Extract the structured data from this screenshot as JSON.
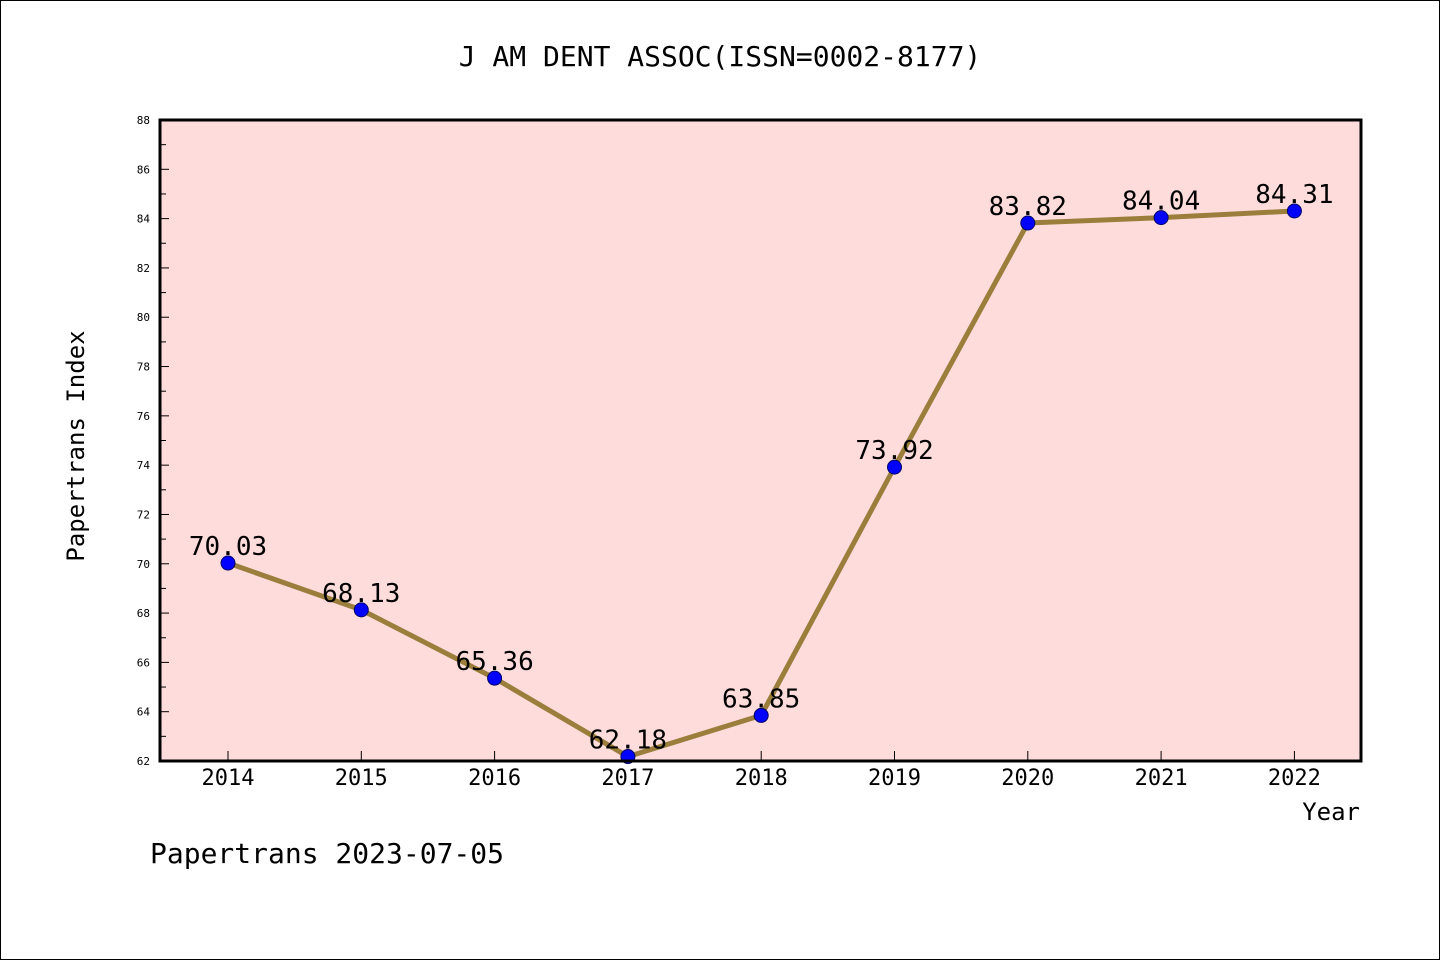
{
  "chart_data": {
    "type": "line",
    "title": "J AM DENT ASSOC(ISSN=0002-8177)",
    "xlabel": "Year",
    "ylabel": "Papertrans Index",
    "categories": [
      "2014",
      "2015",
      "2016",
      "2017",
      "2018",
      "2019",
      "2020",
      "2021",
      "2022"
    ],
    "series": [
      {
        "values": [
          70.03,
          68.13,
          65.36,
          62.18,
          63.85,
          73.92,
          83.82,
          84.04,
          84.31
        ],
        "labels": [
          "70.03",
          "68.13",
          "65.36",
          "62.18",
          "63.85",
          "73.92",
          "83.82",
          "84.04",
          "84.31"
        ]
      }
    ],
    "ylim": [
      62,
      88
    ],
    "yticks": [
      62,
      64,
      66,
      68,
      70,
      72,
      74,
      76,
      78,
      80,
      82,
      84,
      86,
      88
    ],
    "grid": false,
    "legend": "none",
    "colors": {
      "plot_background": "#ffdcdc",
      "line": "#9b7e3c",
      "marker": "#0000ff"
    }
  },
  "footer": {
    "text": "Papertrans 2023-07-05"
  }
}
